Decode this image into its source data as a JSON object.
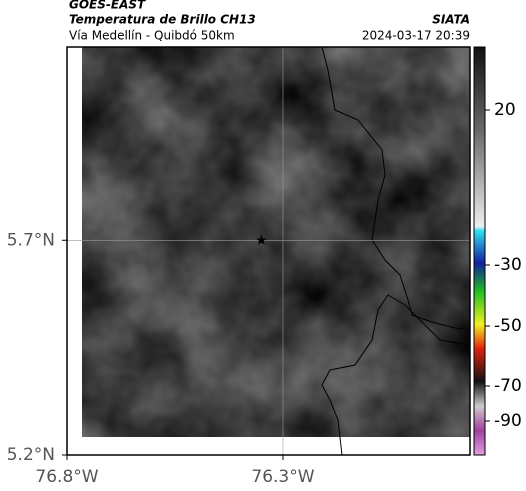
{
  "header": {
    "title": "GOES-EAST",
    "subtitle": "Temperatura de Brillo CH13",
    "source": "SIATA",
    "location": "Vía Medellín - Quibdó 50km",
    "datetime": "2024-03-17 20:39"
  },
  "map": {
    "xlim": [
      -76.8,
      -75.867
    ],
    "ylim": [
      5.2,
      6.15
    ],
    "xticks": [
      {
        "value": -76.8,
        "label": "76.8°W"
      },
      {
        "value": -76.3,
        "label": "76.3°W"
      }
    ],
    "yticks": [
      {
        "value": 5.7,
        "label": "5.7°N"
      },
      {
        "value": 5.2,
        "label": "5.2°N"
      }
    ],
    "marker": {
      "lon": -76.35,
      "lat": 5.7
    }
  },
  "colorbar": {
    "ticks": [
      20,
      -30,
      -50,
      -70,
      -90
    ]
  }
}
